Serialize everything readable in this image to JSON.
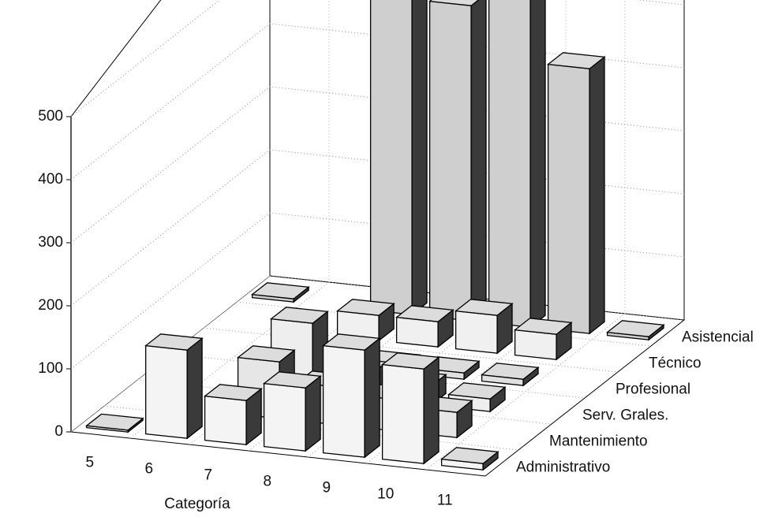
{
  "chart_data": {
    "type": "bar3d",
    "x_label": "Categoría",
    "categories": [
      "5",
      "6",
      "7",
      "8",
      "9",
      "10",
      "11"
    ],
    "series": [
      {
        "name": "Administrativo",
        "color": "#f4f4f4",
        "values": [
          3,
          140,
          70,
          100,
          170,
          150,
          10
        ]
      },
      {
        "name": "Mantenimiento",
        "color": "#e6e6e6",
        "values": [
          0,
          0,
          90,
          60,
          50,
          40,
          0
        ]
      },
      {
        "name": "Serv. Grales.",
        "color": "#eeeeee",
        "values": [
          0,
          0,
          110,
          40,
          30,
          20,
          0
        ]
      },
      {
        "name": "Profesional",
        "color": "#e0e0e0",
        "values": [
          0,
          0,
          15,
          10,
          10,
          10,
          0
        ]
      },
      {
        "name": "Técnico",
        "color": "#f0f0f0",
        "values": [
          0,
          0,
          40,
          40,
          60,
          40,
          0
        ]
      },
      {
        "name": "Asistencial",
        "color": "#cfcfcf",
        "values": [
          5,
          0,
          600,
          500,
          520,
          420,
          5
        ]
      }
    ],
    "ylim": [
      0,
      500
    ],
    "yticks": [
      0,
      100,
      200,
      300,
      400,
      500
    ],
    "grid": true
  }
}
